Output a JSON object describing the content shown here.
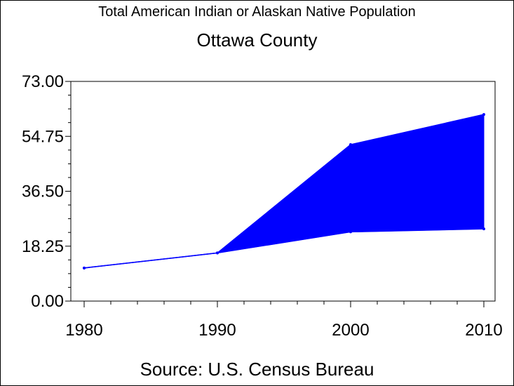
{
  "chart_data": {
    "type": "area",
    "title": "Total American Indian or Alaskan Native Population",
    "subtitle": "Ottawa County",
    "source": "Source: U.S. Census Bureau",
    "x": [
      1980,
      1990,
      2000,
      2010
    ],
    "x_tick_labels": [
      "1980",
      "1990",
      "2000",
      "2010"
    ],
    "y_tick_labels": [
      "0.00",
      "18.25",
      "36.50",
      "54.75",
      "73.00"
    ],
    "ylim": [
      0,
      73
    ],
    "series": [
      {
        "values": [
          11,
          16,
          52,
          62
        ]
      },
      {
        "values": [
          11,
          16,
          23,
          24
        ]
      }
    ],
    "colors": {
      "fill": "#0000ff",
      "line": "#0000ff"
    },
    "grid": false
  }
}
